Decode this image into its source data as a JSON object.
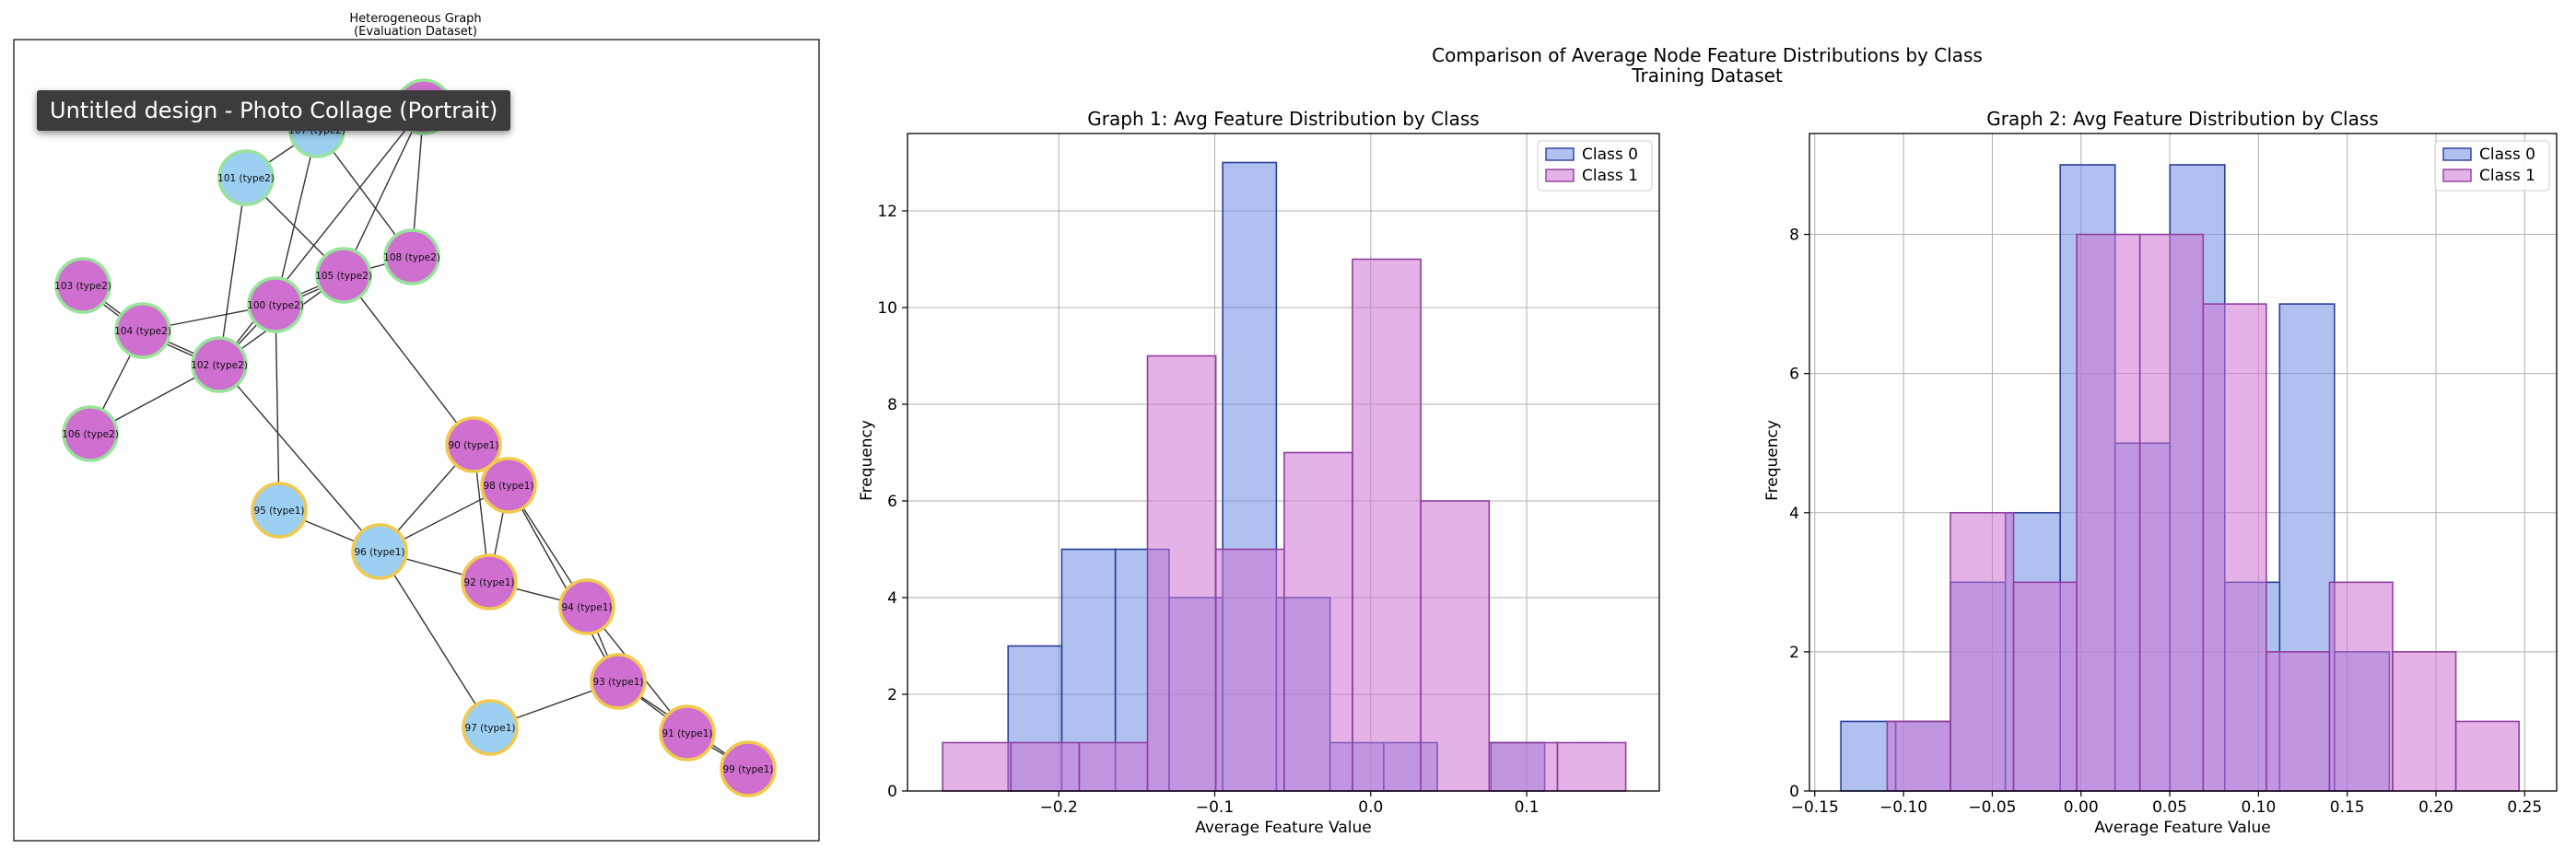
{
  "tooltip": "Untitled design - Photo Collage (Portrait)",
  "suptitle": [
    "Comparison of Average Node Feature Distributions by Class",
    "Training Dataset"
  ],
  "chart_data": [
    {
      "type": "network",
      "title": [
        "Heterogeneous Graph",
        "(Evaluation Dataset)"
      ],
      "node_colors": {
        "type1": "#9ccff2",
        "type2": "#cf6fd0"
      },
      "edge_color": "#333333",
      "nodes": [
        {
          "id": "107 (type2)",
          "fill": "type1",
          "ring": "green"
        },
        {
          "id": "109",
          "fill": "type2",
          "ring": "green"
        },
        {
          "id": "101 (type2)",
          "fill": "type1",
          "ring": "green"
        },
        {
          "id": "108 (type2)",
          "fill": "type2",
          "ring": "green"
        },
        {
          "id": "105 (type2)",
          "fill": "type2",
          "ring": "green"
        },
        {
          "id": "103 (type2)",
          "fill": "type2",
          "ring": "green"
        },
        {
          "id": "100 (type2)",
          "fill": "type2",
          "ring": "green"
        },
        {
          "id": "104 (type2)",
          "fill": "type2",
          "ring": "green"
        },
        {
          "id": "102 (type2)",
          "fill": "type2",
          "ring": "green"
        },
        {
          "id": "106 (type2)",
          "fill": "type2",
          "ring": "green"
        },
        {
          "id": "90 (type1)",
          "fill": "type2",
          "ring": "gold"
        },
        {
          "id": "98 (type1)",
          "fill": "type2",
          "ring": "gold"
        },
        {
          "id": "95 (type1)",
          "fill": "type1",
          "ring": "gold"
        },
        {
          "id": "96 (type1)",
          "fill": "type1",
          "ring": "gold"
        },
        {
          "id": "92 (type1)",
          "fill": "type2",
          "ring": "gold"
        },
        {
          "id": "94 (type1)",
          "fill": "type2",
          "ring": "gold"
        },
        {
          "id": "93 (type1)",
          "fill": "type2",
          "ring": "gold"
        },
        {
          "id": "97 (type1)",
          "fill": "type1",
          "ring": "gold"
        },
        {
          "id": "91 (type1)",
          "fill": "type2",
          "ring": "gold"
        },
        {
          "id": "99 (type1)",
          "fill": "type2",
          "ring": "gold"
        }
      ],
      "edges": [
        [
          "107 (type2)",
          "101 (type2)"
        ],
        [
          "107 (type2)",
          "100 (type2)"
        ],
        [
          "109",
          "105 (type2)"
        ],
        [
          "109",
          "108 (type2)"
        ],
        [
          "101 (type2)",
          "105 (type2)"
        ],
        [
          "101 (type2)",
          "102 (type2)"
        ],
        [
          "107 (type2)",
          "108 (type2)"
        ],
        [
          "109",
          "102 (type2)"
        ],
        [
          "103 (type2)",
          "104 (type2)"
        ],
        [
          "103 (type2)",
          "104 (type2)"
        ],
        [
          "104 (type2)",
          "102 (type2)"
        ],
        [
          "104 (type2)",
          "102 (type2)"
        ],
        [
          "104 (type2)",
          "100 (type2)"
        ],
        [
          "104 (type2)",
          "106 (type2)"
        ],
        [
          "100 (type2)",
          "105 (type2)"
        ],
        [
          "100 (type2)",
          "105 (type2)"
        ],
        [
          "100 (type2)",
          "102 (type2)"
        ],
        [
          "100 (type2)",
          "95 (type1)"
        ],
        [
          "105 (type2)",
          "108 (type2)"
        ],
        [
          "105 (type2)",
          "90 (type1)"
        ],
        [
          "102 (type2)",
          "106 (type2)"
        ],
        [
          "102 (type2)",
          "105 (type2)"
        ],
        [
          "102 (type2)",
          "96 (type1)"
        ],
        [
          "90 (type1)",
          "98 (type1)"
        ],
        [
          "90 (type1)",
          "96 (type1)"
        ],
        [
          "90 (type1)",
          "92 (type1)"
        ],
        [
          "98 (type1)",
          "96 (type1)"
        ],
        [
          "98 (type1)",
          "92 (type1)"
        ],
        [
          "98 (type1)",
          "94 (type1)"
        ],
        [
          "98 (type1)",
          "93 (type1)"
        ],
        [
          "95 (type1)",
          "96 (type1)"
        ],
        [
          "96 (type1)",
          "92 (type1)"
        ],
        [
          "96 (type1)",
          "97 (type1)"
        ],
        [
          "92 (type1)",
          "94 (type1)"
        ],
        [
          "94 (type1)",
          "93 (type1)"
        ],
        [
          "94 (type1)",
          "91 (type1)"
        ],
        [
          "93 (type1)",
          "97 (type1)"
        ],
        [
          "93 (type1)",
          "91 (type1)"
        ],
        [
          "93 (type1)",
          "99 (type1)"
        ],
        [
          "91 (type1)",
          "99 (type1)"
        ]
      ]
    },
    {
      "type": "histogram",
      "title": "Graph 1: Avg Feature Distribution by Class",
      "xlabel": "Average Feature Value",
      "ylabel": "Frequency",
      "xlim": [
        -0.297,
        0.185
      ],
      "ylim": [
        0,
        13.6
      ],
      "xticks": [
        -0.2,
        -0.1,
        0.0,
        0.1
      ],
      "xtick_labels": [
        "−0.2",
        "−0.1",
        "0.0",
        "0.1"
      ],
      "yticks": [
        0,
        2,
        4,
        6,
        8,
        10,
        12
      ],
      "ytick_labels": [
        "0",
        "2",
        "4",
        "6",
        "8",
        "10",
        "12"
      ],
      "grid": true,
      "legend": "top-right",
      "series": [
        {
          "name": "Class 0",
          "color": "#6f8ee3",
          "edge": "#2a3f9a",
          "bins": [
            -0.2325,
            -0.1981,
            -0.1637,
            -0.1293,
            -0.0949,
            -0.0605,
            -0.0261,
            0.0083,
            0.0427,
            0.0771,
            0.1115
          ],
          "counts": [
            3,
            5,
            5,
            4,
            13,
            4,
            1,
            1,
            0,
            1
          ]
        },
        {
          "name": "Class 1",
          "color": "#cf72d3",
          "edge": "#8e3fa0",
          "bins": [
            -0.2745,
            -0.2307,
            -0.1869,
            -0.1431,
            -0.0993,
            -0.0555,
            -0.0117,
            0.0321,
            0.0759,
            0.1197,
            0.1635
          ],
          "counts": [
            1,
            1,
            1,
            9,
            5,
            7,
            11,
            6,
            1,
            1
          ]
        }
      ]
    },
    {
      "type": "histogram",
      "title": "Graph 2: Avg Feature Distribution by Class",
      "xlabel": "Average Feature Value",
      "ylabel": "Frequency",
      "xlim": [
        -0.153,
        0.268
      ],
      "ylim": [
        0,
        9.45
      ],
      "xticks": [
        -0.15,
        -0.1,
        -0.05,
        0.0,
        0.05,
        0.1,
        0.15,
        0.2,
        0.25
      ],
      "xtick_labels": [
        "−0.15",
        "−0.10",
        "−0.05",
        "0.00",
        "0.05",
        "0.10",
        "0.15",
        "0.20",
        "0.25"
      ],
      "yticks": [
        0,
        2,
        4,
        6,
        8
      ],
      "ytick_labels": [
        "0",
        "2",
        "4",
        "6",
        "8"
      ],
      "grid": true,
      "legend": "top-right",
      "series": [
        {
          "name": "Class 0",
          "color": "#6f8ee3",
          "edge": "#2a3f9a",
          "bins": [
            -0.1353,
            -0.1044,
            -0.0735,
            -0.0426,
            -0.0117,
            0.0192,
            0.0501,
            0.081,
            0.1119,
            0.1428,
            0.1737
          ],
          "counts": [
            1,
            1,
            3,
            4,
            9,
            5,
            9,
            3,
            7,
            2
          ]
        },
        {
          "name": "Class 1",
          "color": "#cf72d3",
          "edge": "#8e3fa0",
          "bins": [
            -0.1092,
            -0.0736,
            -0.038,
            -0.0024,
            0.0332,
            0.0688,
            0.1044,
            0.14,
            0.1756,
            0.2112,
            0.2468
          ],
          "counts": [
            1,
            4,
            3,
            8,
            8,
            7,
            2,
            3,
            2,
            1
          ]
        }
      ]
    }
  ]
}
